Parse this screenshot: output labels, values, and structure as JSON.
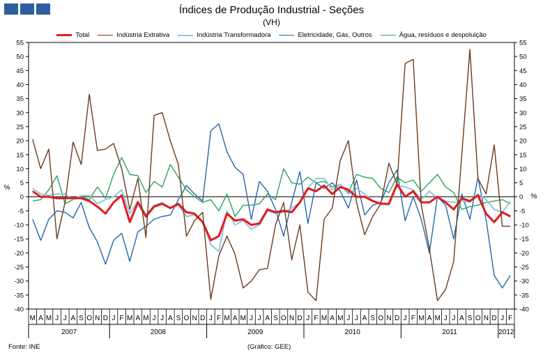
{
  "header": {
    "title": "Índices de Produção Industrial - Seções",
    "subtitle": "(VH)"
  },
  "footer": {
    "source": "Fonte: INE",
    "credit": "(Gráfico: GEE)"
  },
  "chart_data": {
    "type": "line",
    "title": "Índices de Produção Industrial - Seções",
    "subtitle": "(VH)",
    "ylabel_left": "%",
    "ylabel_right": "%",
    "ylim": [
      -40,
      55
    ],
    "y_ticks": [
      -40,
      -35,
      -30,
      -25,
      -20,
      -15,
      -10,
      -5,
      0,
      5,
      10,
      15,
      20,
      25,
      30,
      35,
      40,
      45,
      50,
      55
    ],
    "month_labels": [
      "M",
      "A",
      "M",
      "J",
      "J",
      "A",
      "S",
      "O",
      "N",
      "D",
      "J",
      "F",
      "M",
      "A",
      "M",
      "J",
      "J",
      "A",
      "S",
      "O",
      "N",
      "D",
      "J",
      "F",
      "M",
      "A",
      "M",
      "J",
      "J",
      "A",
      "S",
      "O",
      "N",
      "D",
      "J",
      "F",
      "M",
      "A",
      "M",
      "J",
      "J",
      "A",
      "S",
      "O",
      "N",
      "D",
      "J",
      "F",
      "M",
      "A",
      "M",
      "J",
      "J",
      "A",
      "S",
      "O",
      "N",
      "D",
      "J",
      "F"
    ],
    "years": [
      {
        "label": "2007",
        "start": 0,
        "count": 10
      },
      {
        "label": "2008",
        "start": 10,
        "count": 12
      },
      {
        "label": "2009",
        "start": 22,
        "count": 12
      },
      {
        "label": "2010",
        "start": 34,
        "count": 12
      },
      {
        "label": "2011",
        "start": 46,
        "count": 12
      },
      {
        "label": "2012",
        "start": 58,
        "count": 2
      }
    ],
    "legend_position": "top",
    "colors": {
      "total": "#e31a1c",
      "extrativa": "#6b3a1e",
      "transformadora": "#92c5de",
      "eletricidade": "#2166ac",
      "agua": "#2ca25f",
      "axis": "#000000"
    },
    "series": [
      {
        "key": "eletricidade",
        "name": "Eletricidade, Gás, Outros",
        "values": [
          -8,
          -15.5,
          -8,
          -5,
          -5.5,
          -7.5,
          -2,
          -11,
          -16,
          -24,
          -15.5,
          -13,
          -23,
          -12.5,
          -10.5,
          -8,
          -7,
          -6.5,
          -1,
          4,
          1,
          -1.5,
          23.5,
          26,
          16,
          10.5,
          8,
          -8,
          5.5,
          2,
          -4.5,
          -14,
          -2,
          9,
          -9.5,
          5,
          3,
          5,
          2,
          -4,
          6,
          -6.5,
          -3,
          -2,
          5,
          9.5,
          -8.5,
          0,
          -8,
          -20,
          0,
          -3,
          -15,
          1,
          -8,
          7,
          -8,
          -28,
          -32.5,
          -28
        ]
      },
      {
        "key": "agua",
        "name": "Água, resíduos e despoluição",
        "values": [
          -1.5,
          -1,
          2.5,
          7.5,
          -2.5,
          -1,
          0,
          -1,
          3.5,
          -0.5,
          8,
          14,
          8,
          7.5,
          1.5,
          5.5,
          3.5,
          11.5,
          7,
          2.5,
          0,
          -2,
          -1,
          -5,
          1,
          -7,
          -3,
          -3,
          -2.5,
          1,
          -1,
          10,
          5,
          4.5,
          7,
          5,
          5.5,
          3.5,
          4.5,
          1.5,
          8,
          7,
          6.5,
          3,
          1.5,
          7,
          5,
          6,
          2,
          5,
          8,
          3.5,
          1.5,
          -4.5,
          -3.5,
          -3,
          -2,
          -1.5,
          -1,
          -2.5
        ]
      },
      {
        "key": "transformadora",
        "name": "Indústria Transformadora",
        "values": [
          3,
          1,
          0.5,
          1,
          1,
          -1,
          0.5,
          0.5,
          -2.5,
          -1,
          0,
          2.5,
          -6,
          -1.5,
          -6.5,
          -3,
          -2,
          -4,
          -3,
          -7,
          -6.5,
          -9,
          -17,
          -19.5,
          -5,
          -10,
          -8.5,
          -11.5,
          -10,
          -5,
          -6,
          -5.5,
          -4,
          -2,
          3,
          6.5,
          6.5,
          2.5,
          4.5,
          1,
          3,
          1,
          -1.5,
          -2.5,
          -3,
          4,
          3.5,
          2.5,
          -1,
          2,
          -0.5,
          -1.5,
          -2,
          -1.5,
          -2,
          1,
          -1,
          -4.5,
          -5.5,
          -1.5
        ]
      },
      {
        "key": "total",
        "name": "Total",
        "values": [
          2,
          0,
          0,
          -0.5,
          -0.5,
          -0.5,
          -0.5,
          -1.5,
          -3.5,
          -6,
          -2,
          0.5,
          -9,
          -2,
          -7,
          -3.5,
          -2.5,
          -4,
          -2.5,
          -5.5,
          -6,
          -9,
          -15.5,
          -14,
          -6,
          -8.5,
          -8,
          -10,
          -9.5,
          -4.5,
          -5.5,
          -5,
          -5.5,
          -2,
          3,
          2,
          4,
          1,
          3.5,
          2.5,
          0,
          0,
          -1.5,
          -2.5,
          -2.5,
          4.5,
          0,
          2,
          -2,
          -2,
          0,
          -2,
          -4.5,
          -0.5,
          -1.5,
          0.5,
          -6,
          -9,
          -5.5,
          -7
        ]
      },
      {
        "key": "extrativa",
        "name": "Indústria Extrativa",
        "values": [
          20.5,
          10,
          17,
          -15,
          -2,
          19.5,
          11.5,
          36.5,
          16.5,
          17,
          19,
          10,
          -4.5,
          6.5,
          -14.5,
          29,
          30,
          20,
          11.5,
          -14,
          -8.5,
          -5.5,
          -36.5,
          -21,
          -14,
          -20.5,
          -32.5,
          -30,
          -26,
          -25.5,
          -10,
          -2,
          -22.5,
          -10,
          -34,
          -37,
          -8,
          -4,
          13,
          20,
          -2,
          -13.5,
          -7,
          -2.5,
          12,
          4.5,
          47.5,
          49,
          -3,
          -18.5,
          -37,
          -33,
          -23,
          15,
          52.5,
          6.5,
          1,
          18.5,
          -10.5,
          -10.5
        ]
      }
    ]
  },
  "legend": {
    "items": [
      {
        "key": "total",
        "label": "Total"
      },
      {
        "key": "extrativa",
        "label": "Indústria Extrativa"
      },
      {
        "key": "transformadora",
        "label": "Indústria Transformadora"
      },
      {
        "key": "eletricidade",
        "label": "Eletricidade, Gás, Outros"
      },
      {
        "key": "agua",
        "label": "Água, resíduos e despoluição"
      }
    ]
  }
}
